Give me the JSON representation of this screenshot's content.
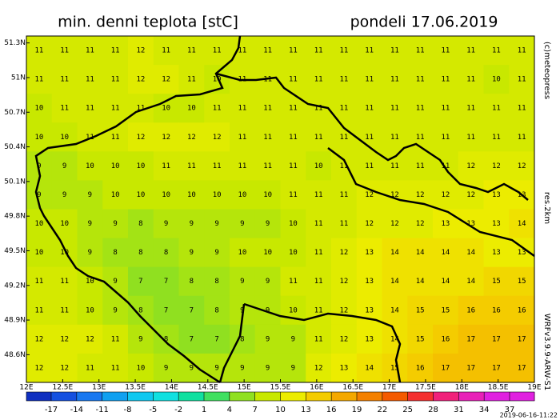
{
  "title": "min. denni teplota [stC]",
  "date": "pondeli 17.06.2019",
  "credit": "(c)meteopress",
  "resolution": "res.2km",
  "model": "WRFv3.9.9-ARW-S1",
  "timestamp": "2019-06-16-11:22",
  "lon_range": [
    12,
    19
  ],
  "lat_range": [
    48.36,
    51.36
  ],
  "longitudes": [
    {
      "value": 12,
      "label": "12E"
    },
    {
      "value": 12.5,
      "label": "12.5E"
    },
    {
      "value": 13,
      "label": "13E"
    },
    {
      "value": 13.5,
      "label": "13.5E"
    },
    {
      "value": 14,
      "label": "14E"
    },
    {
      "value": 14.5,
      "label": "14.5E"
    },
    {
      "value": 15,
      "label": "15E"
    },
    {
      "value": 15.5,
      "label": "15.5E"
    },
    {
      "value": 16,
      "label": "16E"
    },
    {
      "value": 16.5,
      "label": "16.5E"
    },
    {
      "value": 17,
      "label": "17E"
    },
    {
      "value": 17.5,
      "label": "17.5E"
    },
    {
      "value": 18,
      "label": "18E"
    },
    {
      "value": 18.5,
      "label": "18.5E"
    },
    {
      "value": 19,
      "label": "19E"
    }
  ],
  "latitudes": [
    {
      "value": 51.3,
      "label": "51.3N"
    },
    {
      "value": 51,
      "label": "51N"
    },
    {
      "value": 50.7,
      "label": "50.7N"
    },
    {
      "value": 50.4,
      "label": "50.4N"
    },
    {
      "value": 50.1,
      "label": "50.1N"
    },
    {
      "value": 49.8,
      "label": "49.8N"
    },
    {
      "value": 49.5,
      "label": "49.5N"
    },
    {
      "value": 49.2,
      "label": "49.2N"
    },
    {
      "value": 48.9,
      "label": "48.9N"
    },
    {
      "value": 48.6,
      "label": "48.6N"
    }
  ],
  "grid": [
    [
      11,
      11,
      11,
      11,
      12,
      11,
      11,
      11,
      11,
      11,
      11,
      11,
      11,
      11,
      11,
      11,
      11,
      11,
      11,
      11
    ],
    [
      11,
      11,
      11,
      11,
      12,
      12,
      11,
      10,
      11,
      11,
      11,
      11,
      11,
      11,
      11,
      11,
      11,
      11,
      10,
      11
    ],
    [
      10,
      11,
      11,
      11,
      11,
      10,
      10,
      11,
      11,
      11,
      11,
      11,
      11,
      11,
      11,
      11,
      11,
      11,
      11,
      11
    ],
    [
      10,
      10,
      11,
      11,
      12,
      12,
      12,
      12,
      11,
      11,
      11,
      11,
      11,
      11,
      11,
      11,
      11,
      11,
      11,
      11
    ],
    [
      9,
      9,
      10,
      10,
      10,
      11,
      11,
      11,
      11,
      11,
      11,
      10,
      11,
      11,
      11,
      11,
      11,
      12,
      12,
      12
    ],
    [
      9,
      9,
      9,
      10,
      10,
      10,
      10,
      10,
      10,
      10,
      11,
      11,
      11,
      12,
      12,
      12,
      12,
      12,
      13,
      13
    ],
    [
      10,
      10,
      9,
      9,
      8,
      9,
      9,
      9,
      9,
      9,
      10,
      11,
      11,
      12,
      12,
      12,
      13,
      13,
      13,
      14
    ],
    [
      10,
      10,
      9,
      8,
      8,
      8,
      9,
      9,
      10,
      10,
      10,
      11,
      12,
      13,
      14,
      14,
      14,
      14,
      13,
      13
    ],
    [
      11,
      11,
      10,
      9,
      7,
      7,
      8,
      8,
      9,
      9,
      11,
      11,
      12,
      13,
      14,
      14,
      14,
      14,
      15,
      15
    ],
    [
      11,
      11,
      10,
      9,
      8,
      7,
      7,
      8,
      9,
      9,
      10,
      11,
      12,
      13,
      14,
      15,
      15,
      16,
      16,
      16
    ],
    [
      12,
      12,
      12,
      11,
      9,
      8,
      7,
      7,
      8,
      9,
      9,
      11,
      12,
      13,
      14,
      15,
      16,
      17,
      17,
      17
    ],
    [
      12,
      12,
      11,
      11,
      10,
      9,
      9,
      9,
      9,
      9,
      9,
      12,
      13,
      14,
      15,
      16,
      17,
      17,
      17,
      17
    ]
  ],
  "colorbar": {
    "ticks": [
      -17,
      -14,
      -11,
      -8,
      -5,
      -2,
      1,
      4,
      7,
      10,
      13,
      16,
      19,
      22,
      25,
      28,
      31,
      34,
      37
    ],
    "colors": [
      "#1030c0",
      "#1450e0",
      "#1878f0",
      "#10a0f0",
      "#10c8f0",
      "#10e0e0",
      "#10e0a0",
      "#40e060",
      "#90e020",
      "#c8e800",
      "#ecec00",
      "#f4cc00",
      "#f4a800",
      "#f48000",
      "#f45a00",
      "#f43030",
      "#f0207a",
      "#e820b8",
      "#e020e0"
    ]
  }
}
